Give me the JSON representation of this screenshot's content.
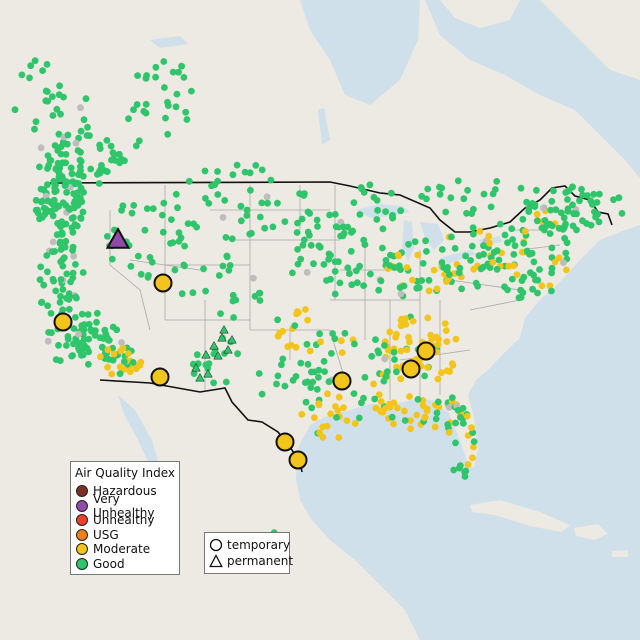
{
  "legend": {
    "title": "Air Quality Index",
    "categories": [
      {
        "label": "Hazardous",
        "color": "#7e2f22"
      },
      {
        "label": "Very Unhealthy",
        "color": "#8e4ba8"
      },
      {
        "label": "Unhealthy",
        "color": "#e8412d"
      },
      {
        "label": "USG",
        "color": "#f07f1d"
      },
      {
        "label": "Moderate",
        "color": "#f3c51a"
      },
      {
        "label": "Good",
        "color": "#2fc56a"
      }
    ]
  },
  "shape_legend": {
    "temporary_label": "temporary",
    "permanent_label": "permanent"
  },
  "colors": {
    "water": "#cfe0ea",
    "land": "#ede9e3",
    "border": "#111111",
    "state_lines": "#aaaaaa",
    "unknown_sensor": "#bdbdbd"
  }
}
